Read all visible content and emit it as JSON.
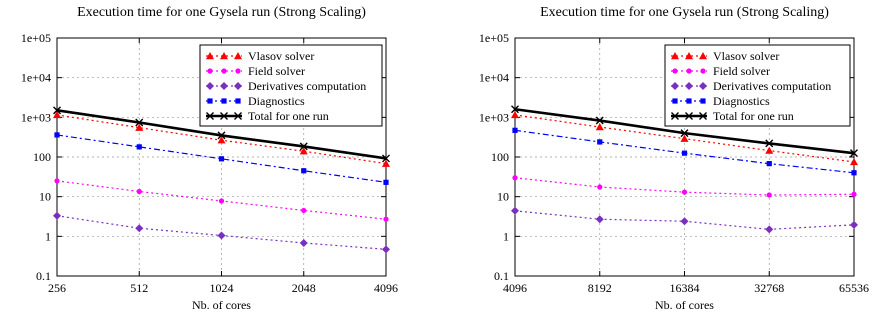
{
  "chart_data": [
    {
      "type": "line",
      "title": "Execution time for one Gysela run (Strong Scaling)",
      "xlabel": "Nb. of cores",
      "ylabel": "",
      "x_scale": "log2",
      "y_scale": "log10",
      "x": [
        256,
        512,
        1024,
        2048,
        4096
      ],
      "x_tick_labels": [
        "256",
        "512",
        "1024",
        "2048",
        "4096"
      ],
      "ylim": [
        0.1,
        100000
      ],
      "y_tick_labels": [
        "0.1",
        "1",
        "10",
        "100",
        "1e+03",
        "1e+04",
        "1e+05"
      ],
      "grid": true,
      "legend_position": "top-right",
      "series": [
        {
          "name": "Vlasov solver",
          "color": "#ff0000",
          "marker": "triangle",
          "dash": "dotted",
          "values": [
            1150,
            550,
            265,
            140,
            68
          ]
        },
        {
          "name": "Field solver",
          "color": "#ff00ff",
          "marker": "circle",
          "dash": "dotted",
          "values": [
            25,
            13.5,
            7.8,
            4.5,
            2.7
          ]
        },
        {
          "name": "Derivatives computation",
          "color": "#7b2fbf",
          "marker": "diamond",
          "dash": "dotted",
          "values": [
            3.3,
            1.6,
            1.05,
            0.68,
            0.47
          ]
        },
        {
          "name": "Diagnostics",
          "color": "#0000ff",
          "marker": "square",
          "dash": "dashdot",
          "values": [
            360,
            180,
            90,
            45,
            23
          ]
        },
        {
          "name": "Total for one run",
          "color": "#000000",
          "marker": "cross",
          "dash": "solid",
          "values": [
            1500,
            740,
            350,
            185,
            92
          ]
        }
      ]
    },
    {
      "type": "line",
      "title": "Execution time for one Gysela run (Strong Scaling)",
      "xlabel": "Nb. of cores",
      "ylabel": "",
      "x_scale": "log2",
      "y_scale": "log10",
      "x": [
        4096,
        8192,
        16384,
        32768,
        65536
      ],
      "x_tick_labels": [
        "4096",
        "8192",
        "16384",
        "32768",
        "65536"
      ],
      "ylim": [
        0.1,
        100000
      ],
      "y_tick_labels": [
        "0.1",
        "1",
        "10",
        "100",
        "1e+03",
        "1e+04",
        "1e+05"
      ],
      "grid": true,
      "legend_position": "top-right",
      "series": [
        {
          "name": "Vlasov solver",
          "color": "#ff0000",
          "marker": "triangle",
          "dash": "dotted",
          "values": [
            1150,
            570,
            290,
            145,
            75
          ]
        },
        {
          "name": "Field solver",
          "color": "#ff00ff",
          "marker": "circle",
          "dash": "dotted",
          "values": [
            30,
            17.5,
            13,
            11,
            11.5
          ]
        },
        {
          "name": "Derivatives computation",
          "color": "#7b2fbf",
          "marker": "diamond",
          "dash": "dotted",
          "values": [
            4.4,
            2.7,
            2.4,
            1.5,
            1.95
          ]
        },
        {
          "name": "Diagnostics",
          "color": "#0000ff",
          "marker": "square",
          "dash": "dashdot",
          "values": [
            470,
            240,
            125,
            68,
            40
          ]
        },
        {
          "name": "Total for one run",
          "color": "#000000",
          "marker": "cross",
          "dash": "solid",
          "values": [
            1600,
            830,
            400,
            220,
            125
          ]
        }
      ]
    }
  ]
}
